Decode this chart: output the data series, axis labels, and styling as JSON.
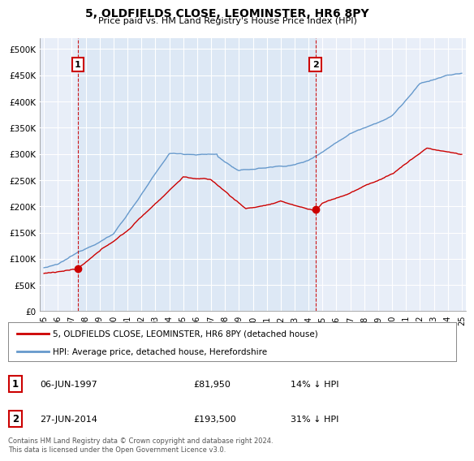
{
  "title": "5, OLDFIELDS CLOSE, LEOMINSTER, HR6 8PY",
  "subtitle": "Price paid vs. HM Land Registry's House Price Index (HPI)",
  "ylabel_ticks": [
    "£0",
    "£50K",
    "£100K",
    "£150K",
    "£200K",
    "£250K",
    "£300K",
    "£350K",
    "£400K",
    "£450K",
    "£500K"
  ],
  "ytick_values": [
    0,
    50000,
    100000,
    150000,
    200000,
    250000,
    300000,
    350000,
    400000,
    450000,
    500000
  ],
  "ylim": [
    0,
    520000
  ],
  "xlim_start": 1994.7,
  "xlim_end": 2025.3,
  "sale1_x": 1997.44,
  "sale1_y": 81950,
  "sale2_x": 2014.49,
  "sale2_y": 193500,
  "sale1_label": "1",
  "sale2_label": "2",
  "sale1_date": "06-JUN-1997",
  "sale1_price": "£81,950",
  "sale1_hpi": "14% ↓ HPI",
  "sale2_date": "27-JUN-2014",
  "sale2_price": "£193,500",
  "sale2_hpi": "31% ↓ HPI",
  "legend_house": "5, OLDFIELDS CLOSE, LEOMINSTER, HR6 8PY (detached house)",
  "legend_hpi": "HPI: Average price, detached house, Herefordshire",
  "footer": "Contains HM Land Registry data © Crown copyright and database right 2024.\nThis data is licensed under the Open Government Licence v3.0.",
  "house_color": "#cc0000",
  "hpi_color": "#6699cc",
  "dashed_color": "#cc0000",
  "fill_color": "#dde8f5",
  "background_plot": "#e8eef8",
  "background_fig": "#ffffff",
  "grid_color": "#ffffff"
}
